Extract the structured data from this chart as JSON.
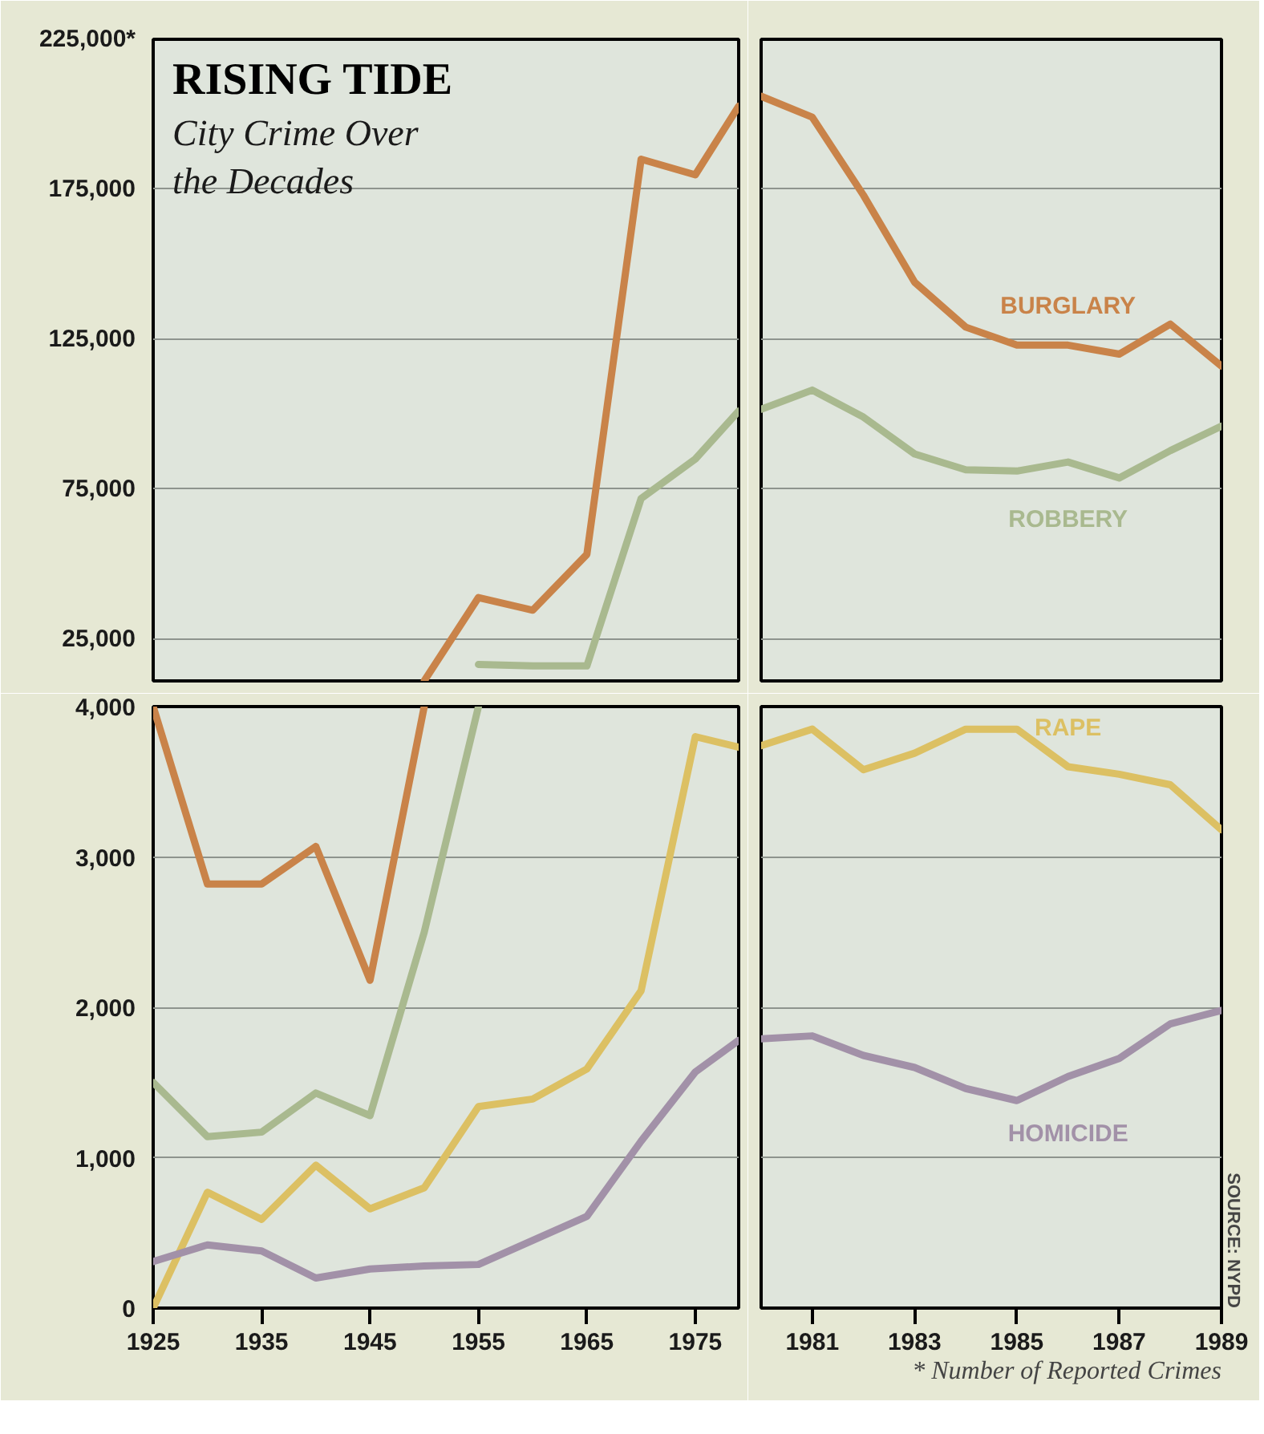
{
  "chart_data": [
    {
      "type": "line",
      "title": "RISING TIDE",
      "subtitle": "City Crime Over the Decades",
      "xlim": [
        1925,
        1979
      ],
      "ylim": [
        11000,
        225000
      ],
      "yticks": [
        {
          "value": 25000,
          "label": "25,000"
        },
        {
          "value": 75000,
          "label": "75,000"
        },
        {
          "value": 125000,
          "label": "125,000"
        },
        {
          "value": 175000,
          "label": "175,000"
        },
        {
          "value": 225000,
          "label": "225,000*"
        }
      ],
      "tick_labels": "y",
      "grid": "y",
      "series": [
        {
          "color": "#c98349",
          "x": [
            1950,
            1955,
            1960,
            1965,
            1970,
            1975,
            1979
          ],
          "values": [
            11000,
            38800,
            34600,
            53200,
            185000,
            179800,
            202700
          ]
        },
        {
          "color": "#a9b98f",
          "x": [
            1955,
            1960,
            1965,
            1970,
            1975,
            1979
          ],
          "values": [
            16500,
            16000,
            16000,
            71800,
            85000,
            101000
          ]
        }
      ]
    },
    {
      "type": "line",
      "x": [
        1980,
        1981,
        1982,
        1983,
        1984,
        1985,
        1986,
        1987,
        1988,
        1989
      ],
      "xlim": [
        1980,
        1989
      ],
      "ylim": [
        11000,
        225000
      ],
      "yticks": [
        25000,
        75000,
        125000,
        175000,
        225000
      ],
      "tick_labels": false,
      "grid": "y",
      "series": [
        {
          "name": "BURGLARY",
          "color": "#c98349",
          "values": [
            206000,
            199000,
            173000,
            144000,
            129000,
            123000,
            123000,
            120000,
            130000,
            116000
          ]
        },
        {
          "name": "ROBBERY",
          "color": "#a9b98f",
          "values": [
            101600,
            108000,
            99000,
            86700,
            81400,
            81000,
            84000,
            78700,
            87800,
            96000
          ]
        }
      ]
    },
    {
      "type": "line",
      "x": [
        1925,
        1930,
        1935,
        1940,
        1945,
        1950,
        1955,
        1960,
        1965,
        1970,
        1975,
        1979
      ],
      "xlim": [
        1925,
        1979
      ],
      "ylim": [
        0,
        4000
      ],
      "xticks": [
        1925,
        1935,
        1945,
        1955,
        1965,
        1975
      ],
      "yticks": [
        0,
        {
          "value": 1000,
          "label": "1,000"
        },
        {
          "value": 2000,
          "label": "2,000"
        },
        {
          "value": 3000,
          "label": "3,000"
        },
        {
          "value": 4000,
          "label": "4,000"
        }
      ],
      "grid": "y",
      "series": [
        {
          "color": "#c98349",
          "x": [
            1925,
            1930,
            1935,
            1940,
            1945,
            1950
          ],
          "values": [
            4000,
            2820,
            2820,
            3070,
            2180,
            4000
          ]
        },
        {
          "color": "#a9b98f",
          "x": [
            1925,
            1930,
            1935,
            1940,
            1945,
            1950,
            1955
          ],
          "values": [
            1500,
            1140,
            1170,
            1430,
            1280,
            2500,
            4000
          ]
        },
        {
          "color": "#dcc063",
          "values": [
            0,
            770,
            590,
            950,
            660,
            800,
            1340,
            1390,
            1590,
            2110,
            3800,
            3730
          ]
        },
        {
          "color": "#a291a8",
          "values": [
            310,
            420,
            380,
            200,
            260,
            280,
            290,
            450,
            610,
            1110,
            1570,
            1780
          ]
        }
      ]
    },
    {
      "type": "line",
      "x": [
        1980,
        1981,
        1982,
        1983,
        1984,
        1985,
        1986,
        1987,
        1988,
        1989
      ],
      "xlim": [
        1980,
        1989
      ],
      "ylim": [
        0,
        4000
      ],
      "xticks": [
        1981,
        1983,
        1985,
        1987,
        1989
      ],
      "yticks": [
        0,
        1000,
        2000,
        3000,
        4000
      ],
      "tick_labels": "x",
      "grid": "y",
      "annotations": [
        "SOURCE: NYPD",
        "* Number of Reported Crimes"
      ],
      "series": [
        {
          "name": "RAPE",
          "color": "#dcc063",
          "values": [
            3740,
            3850,
            3580,
            3690,
            3850,
            3850,
            3600,
            3550,
            3480,
            3180
          ]
        },
        {
          "name": "HOMICIDE",
          "color": "#a291a8",
          "values": [
            1790,
            1810,
            1680,
            1600,
            1460,
            1380,
            1540,
            1660,
            1890,
            1980
          ]
        }
      ]
    }
  ]
}
